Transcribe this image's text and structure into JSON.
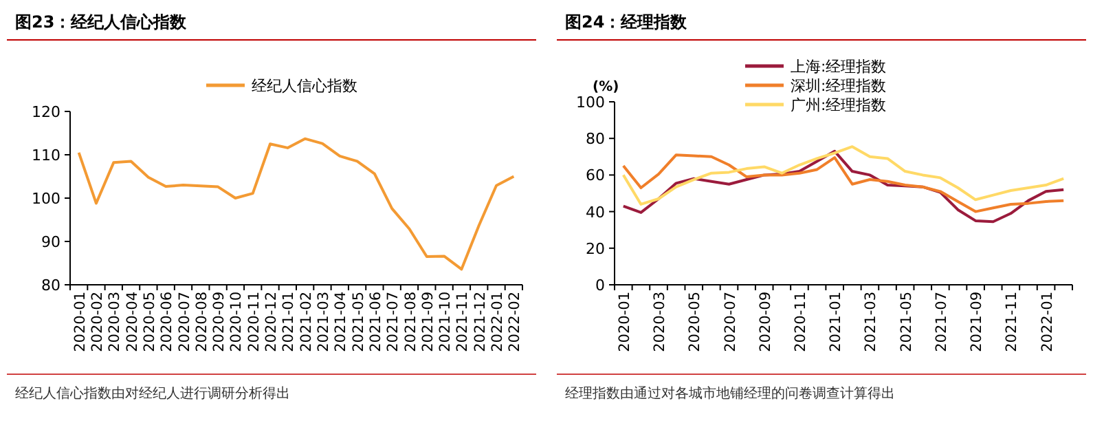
{
  "chart_data": [
    {
      "type": "line",
      "title": "图23：经纪人信心指数",
      "categories": [
        "2020-01",
        "2020-02",
        "2020-03",
        "2020-04",
        "2020-05",
        "2020-06",
        "2020-07",
        "2020-08",
        "2020-09",
        "2020-10",
        "2020-11",
        "2020-12",
        "2021-01",
        "2021-02",
        "2021-03",
        "2021-04",
        "2021-05",
        "2021-06",
        "2021-07",
        "2021-08",
        "2021-09",
        "2021-10",
        "2021-11",
        "2021-12",
        "2022-01",
        "2022-02"
      ],
      "series": [
        {
          "name": "经纪人信心指数",
          "color": "#f39a33",
          "values": [
            110.5,
            98.8,
            108.2,
            108.5,
            104.8,
            102.7,
            103.0,
            102.8,
            102.6,
            100.0,
            101.1,
            112.5,
            111.6,
            113.7,
            112.6,
            109.7,
            108.5,
            105.6,
            97.6,
            92.9,
            86.5,
            86.6,
            83.6,
            93.7,
            102.9,
            105.0
          ]
        }
      ],
      "ylim": [
        80,
        120
      ],
      "yticks": [
        80,
        90,
        100,
        110,
        120
      ],
      "legend": "top",
      "grid": false,
      "annotations": [
        "经纪人信心指数由对经纪人进行调研分析得出"
      ]
    },
    {
      "type": "line",
      "title": "图24：经理指数",
      "ylabel": "(%)",
      "categories": [
        "2020-01",
        null,
        "2020-03",
        null,
        "2020-05",
        null,
        "2020-07",
        null,
        "2020-09",
        null,
        "2020-11",
        null,
        "2021-01",
        null,
        "2021-03",
        null,
        "2021-05",
        null,
        "2021-07",
        null,
        "2021-09",
        null,
        "2021-11",
        null,
        "2022-01",
        null
      ],
      "series": [
        {
          "name": "上海:经理指数",
          "color": "#9b1b3c",
          "values": [
            43,
            39.5,
            47,
            55.5,
            58,
            56.5,
            55,
            57.5,
            60,
            60.5,
            62,
            67.5,
            73,
            62,
            60,
            54.5,
            54,
            53.5,
            50.5,
            41,
            35,
            34.5,
            39,
            46,
            51,
            52
          ]
        },
        {
          "name": "深圳:经理指数",
          "color": "#f07f2a",
          "values": [
            65,
            53,
            60.5,
            71,
            70.5,
            70,
            65.5,
            59,
            60,
            60,
            61,
            63,
            69.5,
            55,
            57.5,
            56.5,
            54.5,
            53.5,
            51,
            45.5,
            40,
            42,
            44,
            44.5,
            45.5,
            46
          ]
        },
        {
          "name": "广州:经理指数",
          "color": "#ffd966",
          "values": [
            60,
            44,
            47,
            53.5,
            57.5,
            61,
            61.5,
            63.5,
            64.5,
            61,
            65.5,
            69,
            72,
            75.5,
            70,
            69,
            62,
            60,
            58.5,
            53,
            46.5,
            49,
            51.5,
            53,
            54.5,
            58
          ]
        }
      ],
      "ylim": [
        0,
        100
      ],
      "yticks": [
        0,
        20,
        40,
        60,
        80,
        100
      ],
      "legend": "top",
      "grid": false,
      "annotations": [
        "经理指数由通过对各城市地铺经理的问卷调查计算得出"
      ]
    }
  ]
}
